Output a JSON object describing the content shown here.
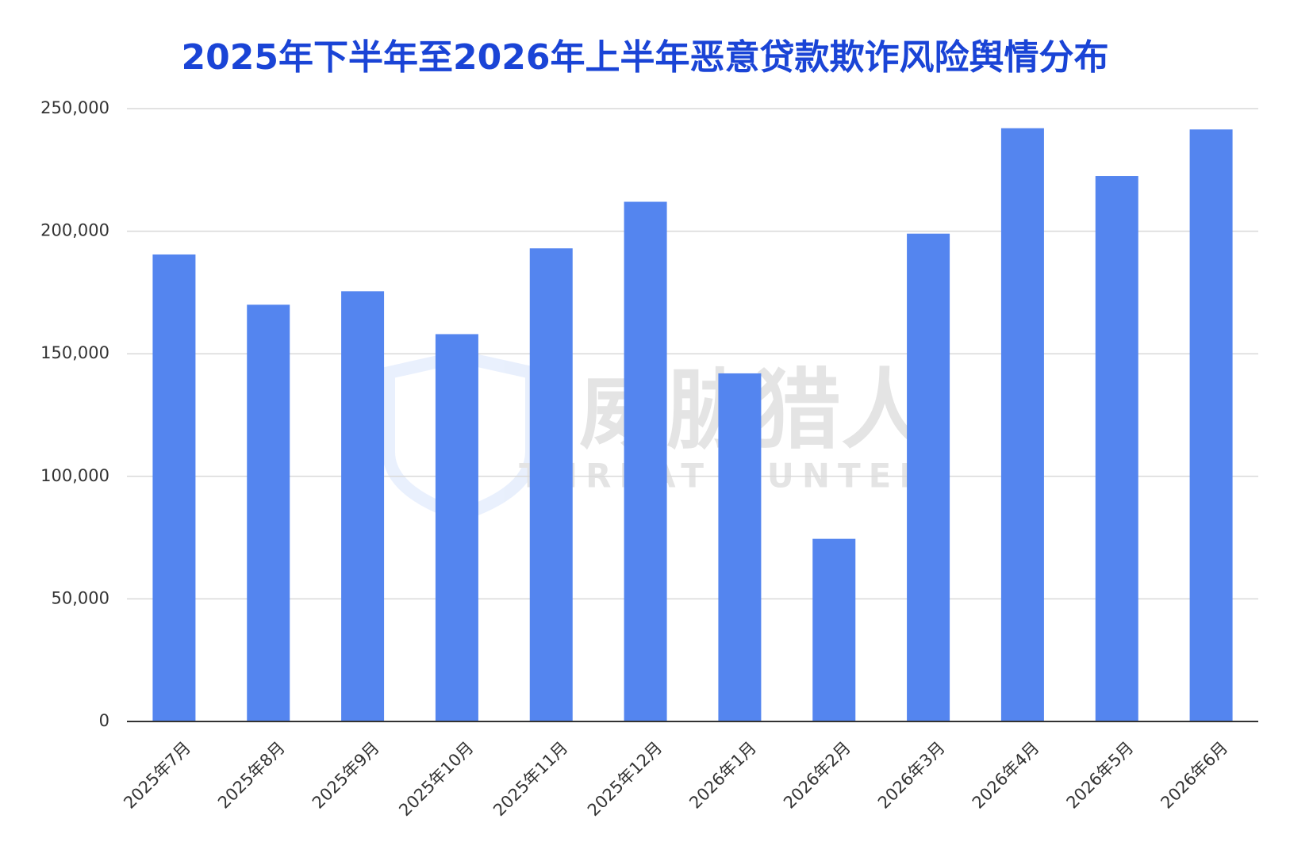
{
  "chart_data": {
    "type": "bar",
    "title": "2025年下半年至2026年上半年恶意贷款欺诈风险舆情分布",
    "categories": [
      "2025年7月",
      "2025年8月",
      "2025年9月",
      "2025年10月",
      "2025年11月",
      "2025年12月",
      "2026年1月",
      "2026年2月",
      "2026年3月",
      "2026年4月",
      "2026年5月",
      "2026年6月"
    ],
    "values": [
      190500,
      170000,
      175500,
      158000,
      193000,
      212000,
      142000,
      74500,
      199000,
      242000,
      222500,
      241500
    ],
    "color": "#5485ef",
    "ylim": [
      0,
      250000
    ],
    "yticks": [
      0,
      {
        "value": 50000,
        "label": "50,000"
      },
      {
        "value": 100000,
        "label": "100,000"
      },
      {
        "value": 150000,
        "label": "150,000"
      },
      {
        "value": 200000,
        "label": "200,000"
      },
      {
        "value": 250000,
        "label": "250,000"
      }
    ],
    "grid": true,
    "watermark": {
      "text": "威胁猎人",
      "subtext": "THREAT HUNTER"
    }
  }
}
